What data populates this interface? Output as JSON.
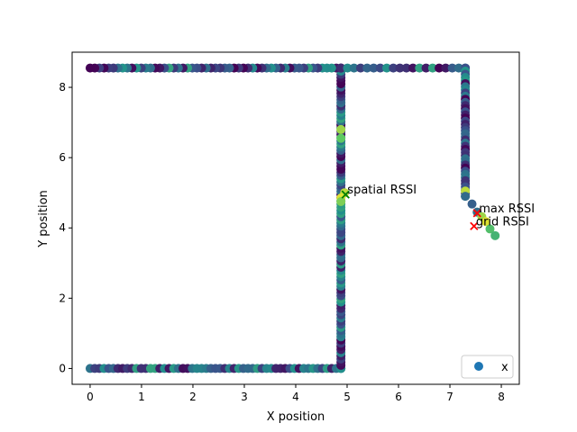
{
  "chart_data": {
    "type": "scatter",
    "xlabel": "X position",
    "ylabel": "Y position",
    "xlim": [
      -0.35,
      8.35
    ],
    "ylim": [
      -0.45,
      9.0
    ],
    "xticks": [
      0,
      1,
      2,
      3,
      4,
      5,
      6,
      7,
      8
    ],
    "yticks": [
      0,
      2,
      4,
      6,
      8
    ],
    "colormap": [
      "#440154",
      "#3b528b",
      "#21918c",
      "#5ec962",
      "#fde725"
    ],
    "series": [
      {
        "name": "x",
        "legend_color": "#1f77b4",
        "segments": [
          {
            "from": [
              0.0,
              0.0
            ],
            "to": [
              4.88,
              0.0
            ],
            "step": 0.09,
            "seed": 1
          },
          {
            "from": [
              4.88,
              0.0
            ],
            "to": [
              4.88,
              8.55
            ],
            "step": 0.09,
            "seed": 2
          },
          {
            "from": [
              4.88,
              8.55
            ],
            "to": [
              0.0,
              8.55
            ],
            "step": 0.09,
            "seed": 3
          },
          {
            "from": [
              4.88,
              8.55
            ],
            "to": [
              7.3,
              8.55
            ],
            "step": 0.13,
            "seed": 4
          },
          {
            "from": [
              7.3,
              8.55
            ],
            "to": [
              7.3,
              4.9
            ],
            "step": 0.09,
            "seed": 5
          }
        ],
        "points": [
          {
            "x": 4.88,
            "y": 6.8,
            "c": 0.85
          },
          {
            "x": 4.88,
            "y": 6.55,
            "c": 0.75
          },
          {
            "x": 4.95,
            "y": 5.0,
            "c": 0.9
          },
          {
            "x": 4.88,
            "y": 4.85,
            "c": 0.95
          },
          {
            "x": 4.88,
            "y": 4.75,
            "c": 0.8
          },
          {
            "x": 7.3,
            "y": 5.05,
            "c": 0.9
          },
          {
            "x": 7.3,
            "y": 4.9,
            "c": 0.35
          },
          {
            "x": 7.43,
            "y": 4.68,
            "c": 0.3
          },
          {
            "x": 7.53,
            "y": 4.45,
            "c": 0.35
          },
          {
            "x": 7.62,
            "y": 4.32,
            "c": 0.85
          },
          {
            "x": 7.7,
            "y": 4.18,
            "c": 0.95
          },
          {
            "x": 7.78,
            "y": 3.97,
            "c": 0.7
          },
          {
            "x": 7.88,
            "y": 3.78,
            "c": 0.65
          }
        ]
      }
    ],
    "markers": [
      {
        "label": "spatial RSSI",
        "x": 4.97,
        "y": 4.95,
        "color": "#008000"
      },
      {
        "label": "max RSSI",
        "x": 7.53,
        "y": 4.42,
        "color": "#ff0000"
      },
      {
        "label": "grid RSSI",
        "x": 7.47,
        "y": 4.05,
        "color": "#ff0000"
      }
    ],
    "legend": {
      "position": "bottom-right",
      "entries": [
        "x"
      ]
    }
  }
}
